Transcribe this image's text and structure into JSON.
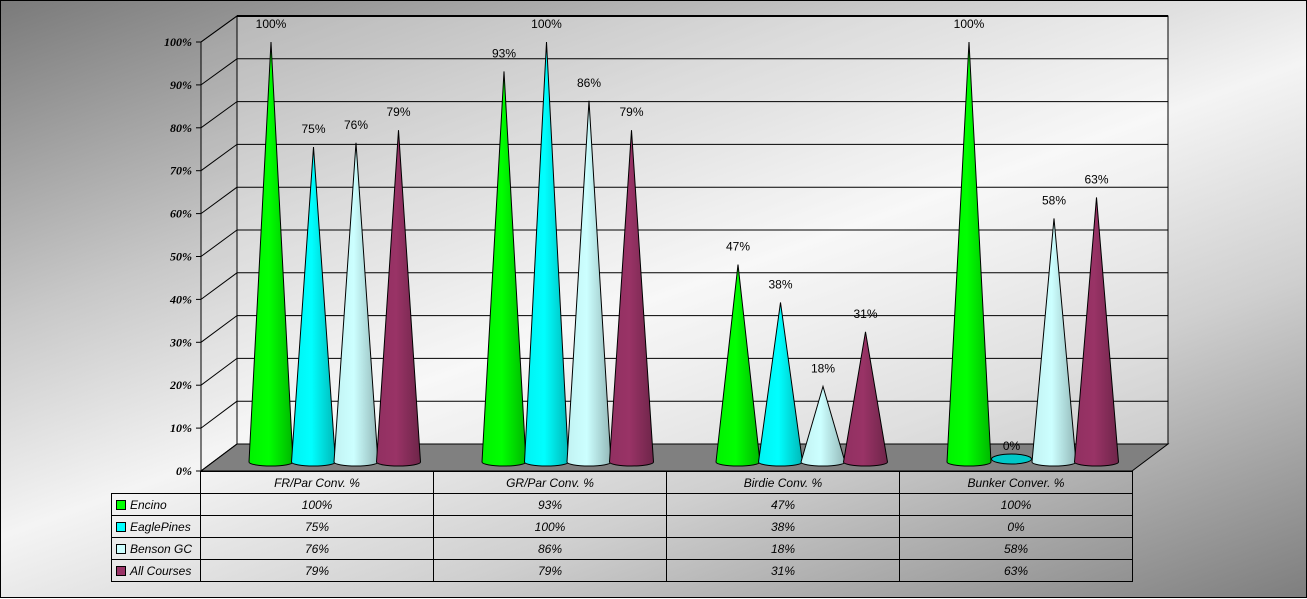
{
  "chart_data": {
    "type": "bar",
    "subtype": "3d-cone",
    "title": "",
    "xlabel": "",
    "ylabel": "",
    "ylim": [
      0,
      100
    ],
    "yticks": [
      "0%",
      "10%",
      "20%",
      "30%",
      "40%",
      "50%",
      "60%",
      "70%",
      "80%",
      "90%",
      "100%"
    ],
    "grid": true,
    "legend_position": "data-table",
    "categories": [
      "FR/Par Conv. %",
      "GR/Par Conv. %",
      "Birdie Conv. %",
      "Bunker Conver. %"
    ],
    "series": [
      {
        "name": "Encino",
        "color": "#00ff00",
        "values": [
          100,
          93,
          47,
          100
        ],
        "labels": [
          "100%",
          "93%",
          "47%",
          "100%"
        ]
      },
      {
        "name": "EaglePines",
        "color": "#00ffff",
        "values": [
          75,
          100,
          38,
          0
        ],
        "labels": [
          "75%",
          "100%",
          "38%",
          "0%"
        ]
      },
      {
        "name": "Benson GC",
        "color": "#ccffff",
        "values": [
          76,
          86,
          18,
          58
        ],
        "labels": [
          "76%",
          "86%",
          "18%",
          "58%"
        ]
      },
      {
        "name": "All Courses",
        "color": "#993366",
        "values": [
          79,
          79,
          31,
          63
        ],
        "labels": [
          "79%",
          "79%",
          "31%",
          "63%"
        ]
      }
    ]
  },
  "table": {
    "headers": [
      "FR/Par Conv. %",
      "GR/Par Conv. %",
      "Birdie Conv. %",
      "Bunker Conver. %"
    ],
    "rows": [
      {
        "legend": "Encino",
        "color": "#00ff00",
        "cells": [
          "100%",
          "93%",
          "47%",
          "100%"
        ]
      },
      {
        "legend": "EaglePines",
        "color": "#00ffff",
        "cells": [
          "75%",
          "100%",
          "38%",
          "0%"
        ]
      },
      {
        "legend": "Benson GC",
        "color": "#ccffff",
        "cells": [
          "76%",
          "86%",
          "18%",
          "58%"
        ]
      },
      {
        "legend": "All Courses",
        "color": "#993366",
        "cells": [
          "79%",
          "79%",
          "31%",
          "63%"
        ]
      }
    ]
  }
}
